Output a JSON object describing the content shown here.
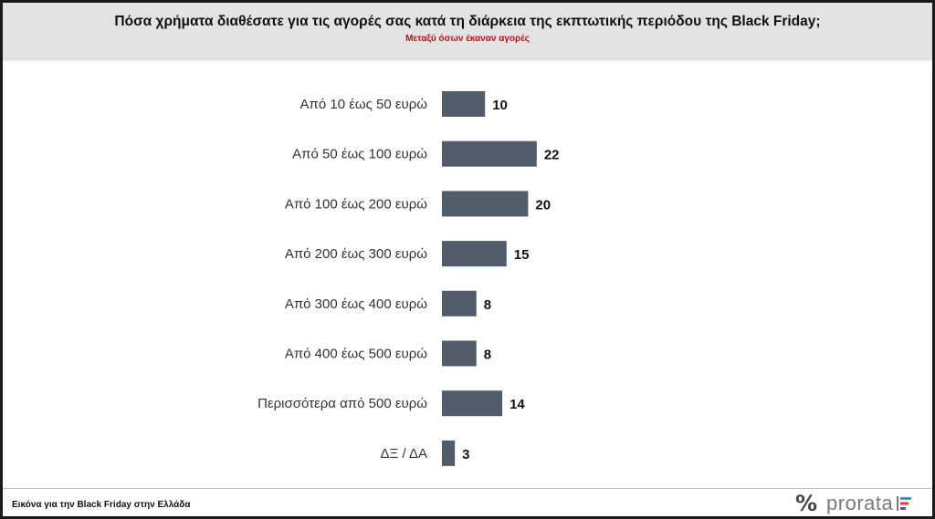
{
  "header": {
    "title": "Πόσα χρήματα διαθέσατε για τις αγορές σας κατά τη διάρκεια της εκπτωτικής περιόδου της Black Friday;",
    "subtitle": "Μεταξύ όσων έκαναν αγορές"
  },
  "chart_data": {
    "type": "bar",
    "orientation": "horizontal",
    "categories": [
      "Από 10 έως 50 ευρώ",
      "Από 50 έως 100 ευρώ",
      "Από 100 έως 200 ευρώ",
      "Από 200 έως 300 ευρώ",
      "Από 300 έως 400 ευρώ",
      "Από 400 έως 500 ευρώ",
      "Περισσότερα από 500 ευρώ",
      "ΔΞ / ΔΑ"
    ],
    "values": [
      10,
      22,
      20,
      15,
      8,
      8,
      14,
      3
    ],
    "bar_color": "#525d6c",
    "grid": false,
    "legend": "none"
  },
  "footer": {
    "caption": "Εικόνα για την Black Friday στην Ελλάδα",
    "logo_symbol": "%",
    "logo_text": "prorata"
  }
}
